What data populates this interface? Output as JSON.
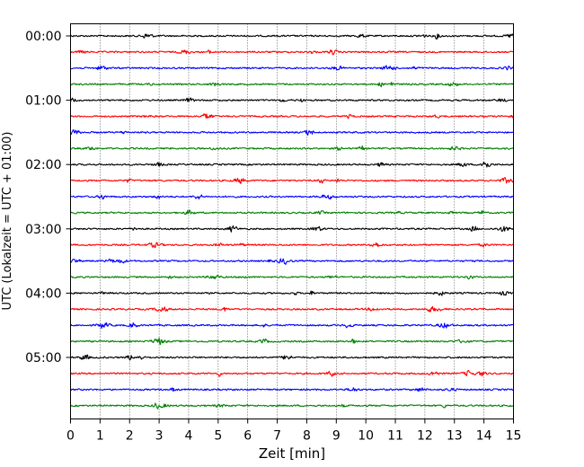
{
  "chart_data": {
    "type": "line",
    "title": "",
    "xlabel": "Zeit  [min]",
    "ylabel": "UTC (Lokalzeit = UTC + 01:00)",
    "xlim": [
      0,
      15
    ],
    "x_ticks": [
      "0",
      "1",
      "2",
      "3",
      "4",
      "5",
      "6",
      "7",
      "8",
      "9",
      "10",
      "11",
      "12",
      "13",
      "14",
      "15"
    ],
    "y_tick_labels": [
      "00:00",
      "01:00",
      "02:00",
      "03:00",
      "04:00",
      "05:00"
    ],
    "rows_per_hour": 4,
    "row_count": 24,
    "row_start_times": [
      "00:00",
      "00:15",
      "00:30",
      "00:45",
      "01:00",
      "01:15",
      "01:30",
      "01:45",
      "02:00",
      "02:15",
      "02:30",
      "02:45",
      "03:00",
      "03:15",
      "03:30",
      "03:45",
      "04:00",
      "04:15",
      "04:30",
      "04:45",
      "05:00",
      "05:15",
      "05:30",
      "05:45"
    ],
    "series_colors": [
      "#000000",
      "#ff0000",
      "#0000ff",
      "#008000"
    ],
    "grid": {
      "vertical": true,
      "style": "dotted"
    }
  }
}
